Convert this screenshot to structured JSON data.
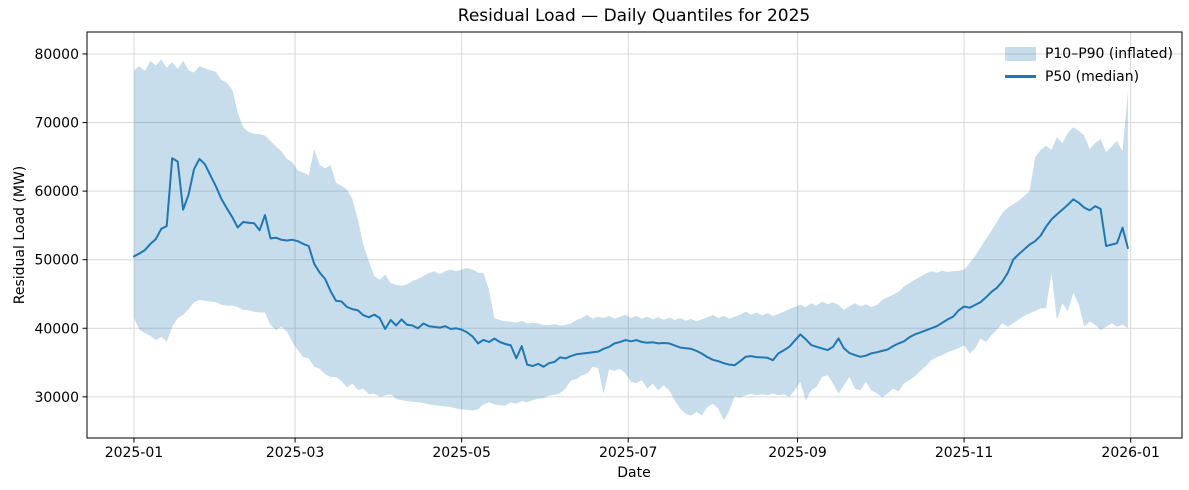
{
  "chart_data": {
    "type": "line",
    "title": "Residual Load — Daily Quantiles for 2025",
    "xlabel": "Date",
    "ylabel": "Residual Load (MW)",
    "legend": [
      {
        "label": "P10–P90 (inflated)",
        "kind": "band",
        "color": "#1f77b4",
        "opacity": 0.25
      },
      {
        "label": "P50 (median)",
        "kind": "line",
        "color": "#1f77b4"
      }
    ],
    "legend_position": "upper right",
    "grid": true,
    "colors": {
      "line": "#1f77b4",
      "band_fill": "#1f77b4",
      "grid": "#d9d9d9",
      "spine": "#000000"
    },
    "x_unit": "days since 2025-01-01",
    "x_ticks": [
      {
        "day": 0,
        "label": "2025-01"
      },
      {
        "day": 59,
        "label": "2025-03"
      },
      {
        "day": 120,
        "label": "2025-05"
      },
      {
        "day": 181,
        "label": "2025-07"
      },
      {
        "day": 243,
        "label": "2025-09"
      },
      {
        "day": 304,
        "label": "2025-11"
      },
      {
        "day": 365,
        "label": "2026-01"
      }
    ],
    "y_ticks": [
      30000,
      40000,
      50000,
      60000,
      70000,
      80000
    ],
    "ylim": [
      24000,
      83200
    ],
    "xlim_days": [
      -17.2,
      383.8
    ],
    "days": [
      0,
      2,
      4,
      6,
      8,
      10,
      12,
      14,
      16,
      18,
      20,
      22,
      24,
      26,
      28,
      30,
      32,
      34,
      36,
      38,
      40,
      42,
      44,
      46,
      48,
      50,
      52,
      54,
      56,
      58,
      60,
      62,
      64,
      66,
      68,
      70,
      72,
      74,
      76,
      78,
      80,
      82,
      84,
      86,
      88,
      90,
      92,
      94,
      96,
      98,
      100,
      102,
      104,
      106,
      108,
      110,
      112,
      114,
      116,
      118,
      120,
      122,
      124,
      126,
      128,
      130,
      132,
      134,
      136,
      138,
      140,
      142,
      144,
      146,
      148,
      150,
      152,
      154,
      156,
      158,
      160,
      162,
      164,
      166,
      168,
      170,
      172,
      174,
      176,
      178,
      180,
      182,
      184,
      186,
      188,
      190,
      192,
      194,
      196,
      198,
      200,
      202,
      204,
      206,
      208,
      210,
      212,
      214,
      216,
      218,
      220,
      222,
      224,
      226,
      228,
      230,
      232,
      234,
      236,
      238,
      240,
      242,
      244,
      246,
      248,
      250,
      252,
      254,
      256,
      258,
      260,
      262,
      264,
      266,
      268,
      270,
      272,
      274,
      276,
      278,
      280,
      282,
      284,
      286,
      288,
      290,
      292,
      294,
      296,
      298,
      300,
      302,
      304,
      306,
      308,
      310,
      312,
      314,
      316,
      318,
      320,
      322,
      324,
      326,
      328,
      330,
      332,
      334,
      336,
      338,
      340,
      342,
      344,
      346,
      348,
      350,
      352,
      354,
      356,
      358,
      360,
      362,
      364
    ],
    "series": [
      {
        "name": "P50 (median)",
        "values": [
          50500,
          50900,
          51400,
          52300,
          53000,
          54500,
          54900,
          64800,
          64300,
          57300,
          59500,
          63200,
          64700,
          63900,
          62300,
          60700,
          58900,
          57500,
          56200,
          54700,
          55500,
          55400,
          55300,
          54300,
          56500,
          53100,
          53200,
          52900,
          52800,
          52900,
          52700,
          52300,
          52000,
          49400,
          48100,
          47200,
          45400,
          44000,
          43900,
          43100,
          42800,
          42600,
          41900,
          41600,
          42000,
          41500,
          39900,
          41200,
          40400,
          41300,
          40500,
          40400,
          40000,
          40700,
          40300,
          40200,
          40100,
          40300,
          39900,
          40000,
          39800,
          39400,
          38800,
          37800,
          38300,
          38000,
          38500,
          38000,
          37700,
          37500,
          35600,
          37400,
          34700,
          34500,
          34800,
          34400,
          34900,
          35100,
          35750,
          35600,
          35940,
          36200,
          36300,
          36400,
          36500,
          36600,
          37000,
          37300,
          37800,
          38000,
          38280,
          38100,
          38280,
          38000,
          37900,
          37950,
          37800,
          37850,
          37800,
          37500,
          37200,
          37100,
          37000,
          36700,
          36300,
          35800,
          35400,
          35200,
          34900,
          34700,
          34620,
          35200,
          35840,
          35940,
          35800,
          35750,
          35700,
          35350,
          36330,
          36800,
          37300,
          38200,
          39100,
          38400,
          37550,
          37300,
          37070,
          36820,
          37300,
          38530,
          37100,
          36400,
          36090,
          35840,
          36000,
          36330,
          36500,
          36700,
          36900,
          37400,
          37800,
          38100,
          38700,
          39100,
          39400,
          39700,
          40000,
          40300,
          40800,
          41300,
          41700,
          42600,
          43170,
          43000,
          43400,
          43800,
          44500,
          45300,
          45900,
          46800,
          48100,
          50000,
          50800,
          51500,
          52200,
          52700,
          53500,
          54800,
          55880,
          56600,
          57300,
          58000,
          58800,
          58300,
          57600,
          57200,
          57800,
          57400,
          52000,
          52200,
          52400,
          54660,
          51700
        ]
      },
      {
        "name": "P10",
        "values": [
          41480,
          39800,
          39300,
          38900,
          38280,
          38770,
          38040,
          40200,
          41500,
          41950,
          42800,
          43800,
          44140,
          44000,
          43900,
          43800,
          43420,
          43300,
          43300,
          43100,
          42680,
          42600,
          42400,
          42300,
          42300,
          40480,
          39750,
          40240,
          39500,
          38000,
          36800,
          35800,
          35600,
          34380,
          34100,
          33300,
          32900,
          32900,
          32300,
          31400,
          31940,
          31000,
          31210,
          30400,
          30470,
          30000,
          30200,
          30400,
          29700,
          29500,
          29400,
          29300,
          29200,
          29100,
          28900,
          28800,
          28700,
          28600,
          28500,
          28300,
          28200,
          28100,
          28000,
          28200,
          28900,
          29220,
          28900,
          28800,
          28730,
          29200,
          29000,
          29400,
          29200,
          29500,
          29700,
          29800,
          30190,
          30300,
          30500,
          31200,
          32390,
          32600,
          33130,
          33400,
          34350,
          34200,
          30430,
          34000,
          33800,
          34100,
          33400,
          32180,
          32000,
          32430,
          31210,
          31940,
          30960,
          31690,
          30960,
          29500,
          28280,
          27540,
          27300,
          27790,
          27300,
          28520,
          29010,
          28280,
          26560,
          28000,
          30100,
          29860,
          30230,
          30470,
          30230,
          30380,
          30230,
          30470,
          30230,
          30380,
          29990,
          30960,
          32180,
          29500,
          30960,
          31450,
          32910,
          33160,
          31940,
          30470,
          31690,
          32910,
          31210,
          30960,
          32180,
          31000,
          30500,
          29950,
          30500,
          31210,
          30800,
          31940,
          32500,
          33000,
          33800,
          34500,
          35350,
          35800,
          36090,
          36500,
          36800,
          37100,
          37550,
          36330,
          37000,
          38530,
          38000,
          39000,
          39800,
          40730,
          40200,
          40730,
          41300,
          41800,
          42190,
          42500,
          42920,
          42920,
          48060,
          41210,
          43660,
          42500,
          45130,
          43500,
          40240,
          41000,
          40500,
          39750,
          40200,
          40730,
          40240,
          40500,
          40000
        ]
      },
      {
        "name": "P90",
        "values": [
          77600,
          78200,
          77500,
          79000,
          78300,
          79200,
          78000,
          78800,
          77800,
          79000,
          77600,
          77300,
          78200,
          77900,
          77600,
          77400,
          76200,
          75800,
          74800,
          71500,
          69300,
          68600,
          68400,
          68300,
          68100,
          67300,
          66500,
          65800,
          64680,
          64200,
          63000,
          62700,
          62300,
          66140,
          63800,
          63300,
          63800,
          61200,
          60800,
          60200,
          58800,
          55800,
          52200,
          49800,
          47600,
          47080,
          47820,
          46600,
          46350,
          46200,
          46400,
          46900,
          47200,
          47600,
          48060,
          48300,
          47900,
          48300,
          48550,
          48300,
          48550,
          48790,
          48550,
          48100,
          48060,
          45620,
          41480,
          41210,
          41000,
          40970,
          40800,
          41100,
          40700,
          40800,
          40700,
          40480,
          40480,
          40600,
          40400,
          40480,
          40700,
          41210,
          41500,
          41950,
          41400,
          41700,
          41500,
          41800,
          41400,
          41700,
          41950,
          41500,
          41800,
          41400,
          41700,
          41300,
          41600,
          41250,
          41550,
          41200,
          41500,
          41100,
          41400,
          41000,
          41300,
          41600,
          41950,
          41500,
          41800,
          41400,
          41700,
          42000,
          42430,
          42000,
          42300,
          41900,
          42200,
          41800,
          42100,
          42430,
          42800,
          43100,
          43420,
          43100,
          43660,
          43300,
          43900,
          43500,
          43800,
          43400,
          42680,
          43200,
          43660,
          43200,
          43500,
          43100,
          43400,
          44140,
          44500,
          44880,
          45300,
          46100,
          46600,
          47080,
          47500,
          48000,
          48300,
          48100,
          48400,
          48200,
          48300,
          48400,
          48550,
          49500,
          50500,
          51800,
          53000,
          54200,
          55500,
          56800,
          57600,
          58080,
          58600,
          59300,
          60000,
          64920,
          66000,
          66630,
          66000,
          67860,
          67000,
          68500,
          69320,
          68800,
          68100,
          66140,
          67000,
          67610,
          65650,
          66500,
          67370,
          65800,
          74500
        ]
      }
    ]
  }
}
